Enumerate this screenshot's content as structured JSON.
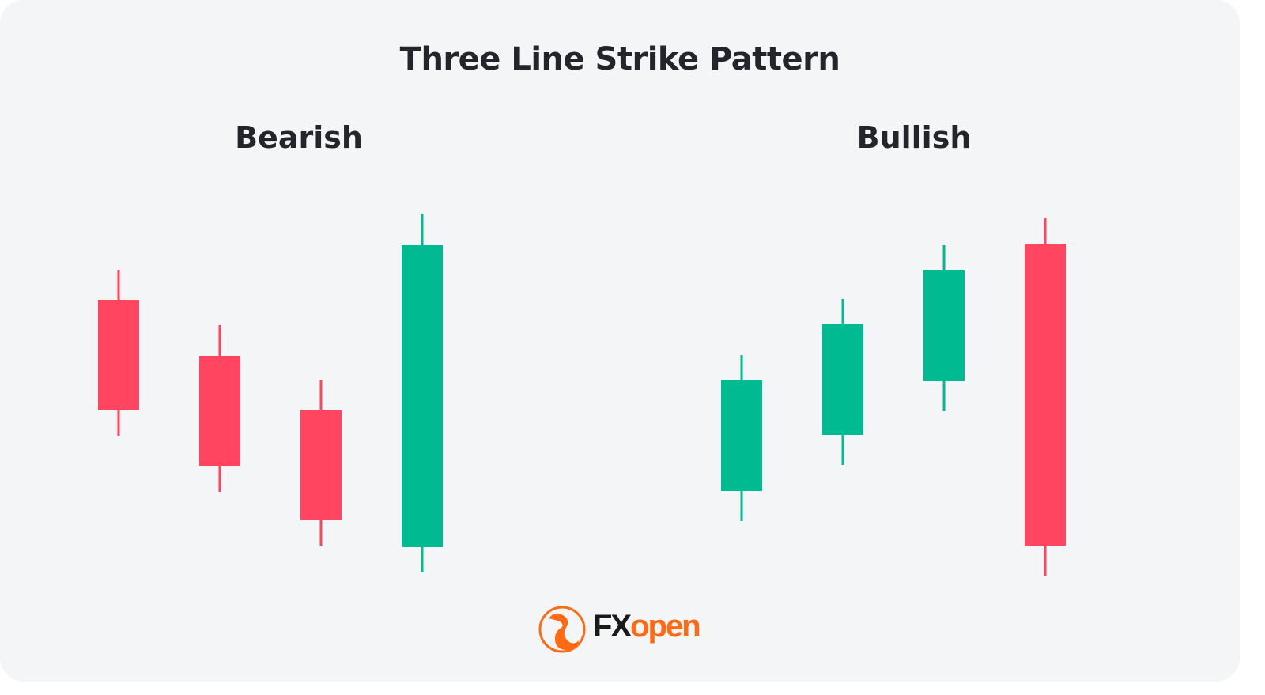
{
  "title": "Three Line Strike Pattern",
  "sections": [
    {
      "label": "Bearish",
      "candles": [
        {
          "color": "red"
        },
        {
          "color": "red"
        },
        {
          "color": "red"
        },
        {
          "color": "green"
        }
      ]
    },
    {
      "label": "Bullish",
      "candles": [
        {
          "color": "green"
        },
        {
          "color": "green"
        },
        {
          "color": "green"
        },
        {
          "color": "red"
        }
      ]
    }
  ],
  "colors": {
    "red": "#ff455f",
    "green": "#00ba92",
    "brand_orange": "#ff6a13",
    "brand_dark": "#1a1a1a"
  },
  "logo": {
    "part1": "FX",
    "part2": "open"
  }
}
